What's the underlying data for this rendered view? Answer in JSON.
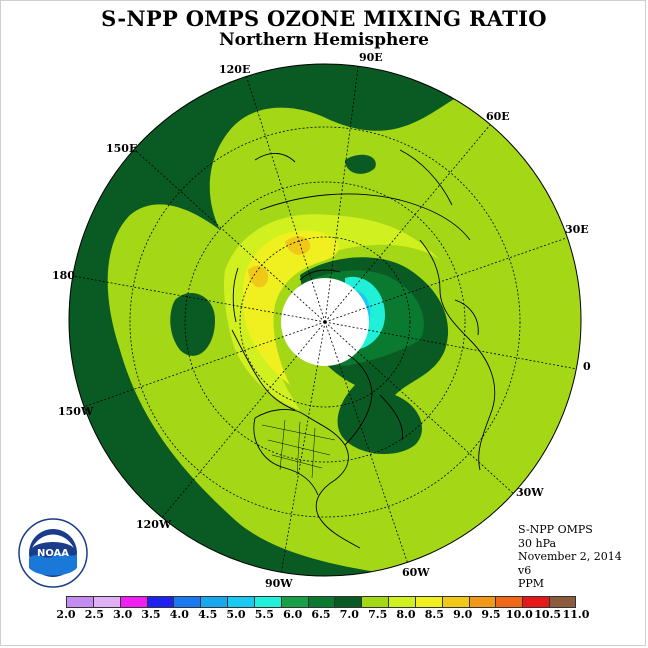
{
  "header": {
    "title": "S-NPP OMPS OZONE MIXING RATIO",
    "subtitle": "Northern Hemisphere"
  },
  "longitude_labels": {
    "e90": "90E",
    "e60": "60E",
    "e30": "30E",
    "zero": "0",
    "w30": "30W",
    "w60": "60W",
    "w90": "90W",
    "w120": "120W",
    "w150": "150W",
    "d180": "180",
    "e150": "150E",
    "e120": "120E"
  },
  "info": {
    "instrument": "S-NPP OMPS",
    "level": "30 hPa",
    "date": "November 2, 2014",
    "version": "v6",
    "units": "PPM"
  },
  "colorbar": {
    "ticks": [
      "2.0",
      "2.5",
      "3.0",
      "3.5",
      "4.0",
      "4.5",
      "5.0",
      "5.5",
      "6.0",
      "6.5",
      "7.0",
      "7.5",
      "8.0",
      "8.5",
      "9.0",
      "9.5",
      "10.0",
      "10.5",
      "11.0"
    ],
    "colors": [
      "#c48cf0",
      "#e0b0f4",
      "#f01ef0",
      "#2020f0",
      "#1a78f0",
      "#18a8f0",
      "#1ac8f4",
      "#20f0d8",
      "#18a048",
      "#0a7a30",
      "#0a5a24",
      "#a4d816",
      "#d0f020",
      "#f0f020",
      "#f0c818",
      "#f09818",
      "#f06818",
      "#e81818",
      "#8c5a3c"
    ]
  },
  "logo": {
    "text": "NOAA",
    "ring_text": "NATIONAL OCEANIC AND ATMOSPHERIC ADMINISTRATION · U.S. DEPARTMENT OF COMMERCE"
  }
}
